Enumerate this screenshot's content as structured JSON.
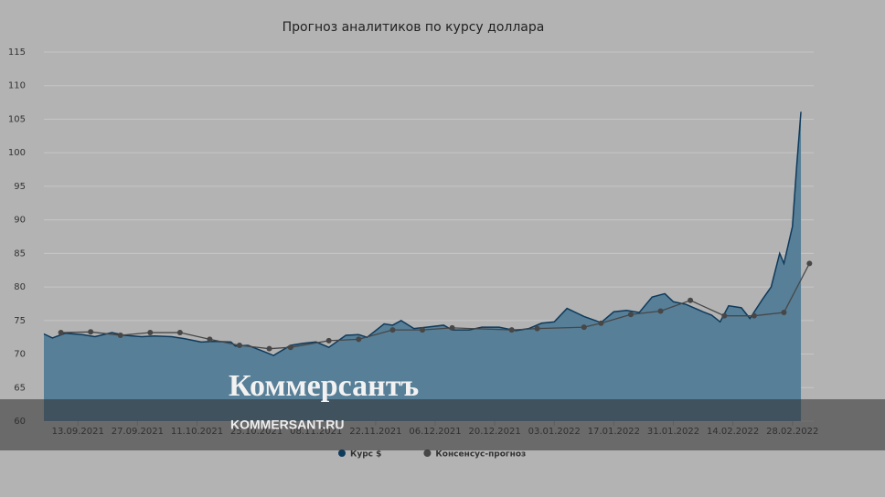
{
  "chart_data": {
    "type": "area-line",
    "title": "Прогноз аналитиков по курсу доллара",
    "xlim": [
      "05.09.2021",
      "05.03.2022"
    ],
    "xticks": [
      "13.09.2021",
      "27.09.2021",
      "11.10.2021",
      "25.10.2021",
      "08.11.2021",
      "22.11.2021",
      "06.12.2021",
      "20.12.2021",
      "03.01.2022",
      "17.01.2022",
      "31.01.2022",
      "14.02.2022",
      "28.02.2022"
    ],
    "ylim": [
      60,
      115
    ],
    "yticks": [
      60,
      65,
      70,
      75,
      80,
      85,
      90,
      95,
      100,
      105,
      110,
      115
    ],
    "grid": true,
    "legend": "bottom",
    "series": [
      {
        "name": "Курс $",
        "kind": "area",
        "color": "#0e3a5c",
        "fill": "#577f97",
        "x": [
          "05.09.2021",
          "07.09.2021",
          "10.09.2021",
          "14.09.2021",
          "17.09.2021",
          "21.09.2021",
          "24.09.2021",
          "28.09.2021",
          "01.10.2021",
          "05.10.2021",
          "08.10.2021",
          "12.10.2021",
          "15.10.2021",
          "19.10.2021",
          "20.10.2021",
          "23.10.2021",
          "27.10.2021",
          "29.10.2021",
          "02.11.2021",
          "05.11.2021",
          "08.11.2021",
          "11.11.2021",
          "15.11.2021",
          "18.11.2021",
          "20.11.2021",
          "24.11.2021",
          "26.11.2021",
          "28.11.2021",
          "01.12.2021",
          "04.12.2021",
          "08.12.2021",
          "10.12.2021",
          "14.12.2021",
          "17.12.2021",
          "21.12.2021",
          "25.12.2021",
          "28.12.2021",
          "31.12.2021",
          "03.01.2022",
          "06.01.2022",
          "10.01.2022",
          "14.01.2022",
          "17.01.2022",
          "20.01.2022",
          "23.01.2022",
          "26.01.2022",
          "29.01.2022",
          "31.01.2022",
          "03.02.2022",
          "07.02.2022",
          "09.02.2022",
          "11.02.2022",
          "13.02.2022",
          "16.02.2022",
          "18.02.2022",
          "21.02.2022",
          "23.02.2022",
          "25.02.2022",
          "26.02.2022",
          "28.02.2022",
          "01.03.2022",
          "02.03.2022"
        ],
        "values": [
          73.0,
          72.4,
          73.1,
          72.9,
          72.6,
          73.2,
          72.8,
          72.6,
          72.7,
          72.6,
          72.3,
          71.8,
          71.9,
          71.8,
          71.2,
          71.3,
          70.3,
          69.8,
          71.3,
          71.6,
          71.8,
          71.0,
          72.8,
          72.9,
          72.5,
          74.5,
          74.3,
          75.0,
          73.8,
          74.0,
          74.3,
          73.6,
          73.6,
          74.0,
          74.0,
          73.5,
          73.8,
          74.6,
          74.8,
          76.8,
          75.6,
          74.7,
          76.3,
          76.5,
          76.2,
          78.5,
          79.0,
          77.8,
          77.4,
          76.3,
          75.8,
          74.8,
          77.2,
          76.9,
          75.3,
          78.2,
          80.0,
          85.0,
          83.5,
          89.0,
          98.0,
          106.1
        ]
      },
      {
        "name": "Консенсус-прогноз",
        "kind": "line",
        "color": "#474747",
        "x": [
          "09.09.2021",
          "16.09.2021",
          "23.09.2021",
          "30.09.2021",
          "07.10.2021",
          "14.10.2021",
          "21.10.2021",
          "28.10.2021",
          "02.11.2021",
          "11.11.2021",
          "18.11.2021",
          "26.11.2021",
          "03.12.2021",
          "10.12.2021",
          "24.12.2021",
          "30.12.2021",
          "10.01.2022",
          "14.01.2022",
          "21.01.2022",
          "28.01.2022",
          "04.02.2022",
          "12.02.2022",
          "19.02.2022",
          "26.02.2022",
          "04.03.2022"
        ],
        "values": [
          73.2,
          73.3,
          72.8,
          73.2,
          73.2,
          72.2,
          71.3,
          70.8,
          71.0,
          72.0,
          72.2,
          73.6,
          73.6,
          73.9,
          73.6,
          73.8,
          74.0,
          74.6,
          75.9,
          76.4,
          78.0,
          75.7,
          75.7,
          76.2,
          83.5
        ]
      }
    ]
  },
  "watermark": {
    "logo": "Коммерсантъ",
    "site": "KOMMERSANT.RU"
  }
}
